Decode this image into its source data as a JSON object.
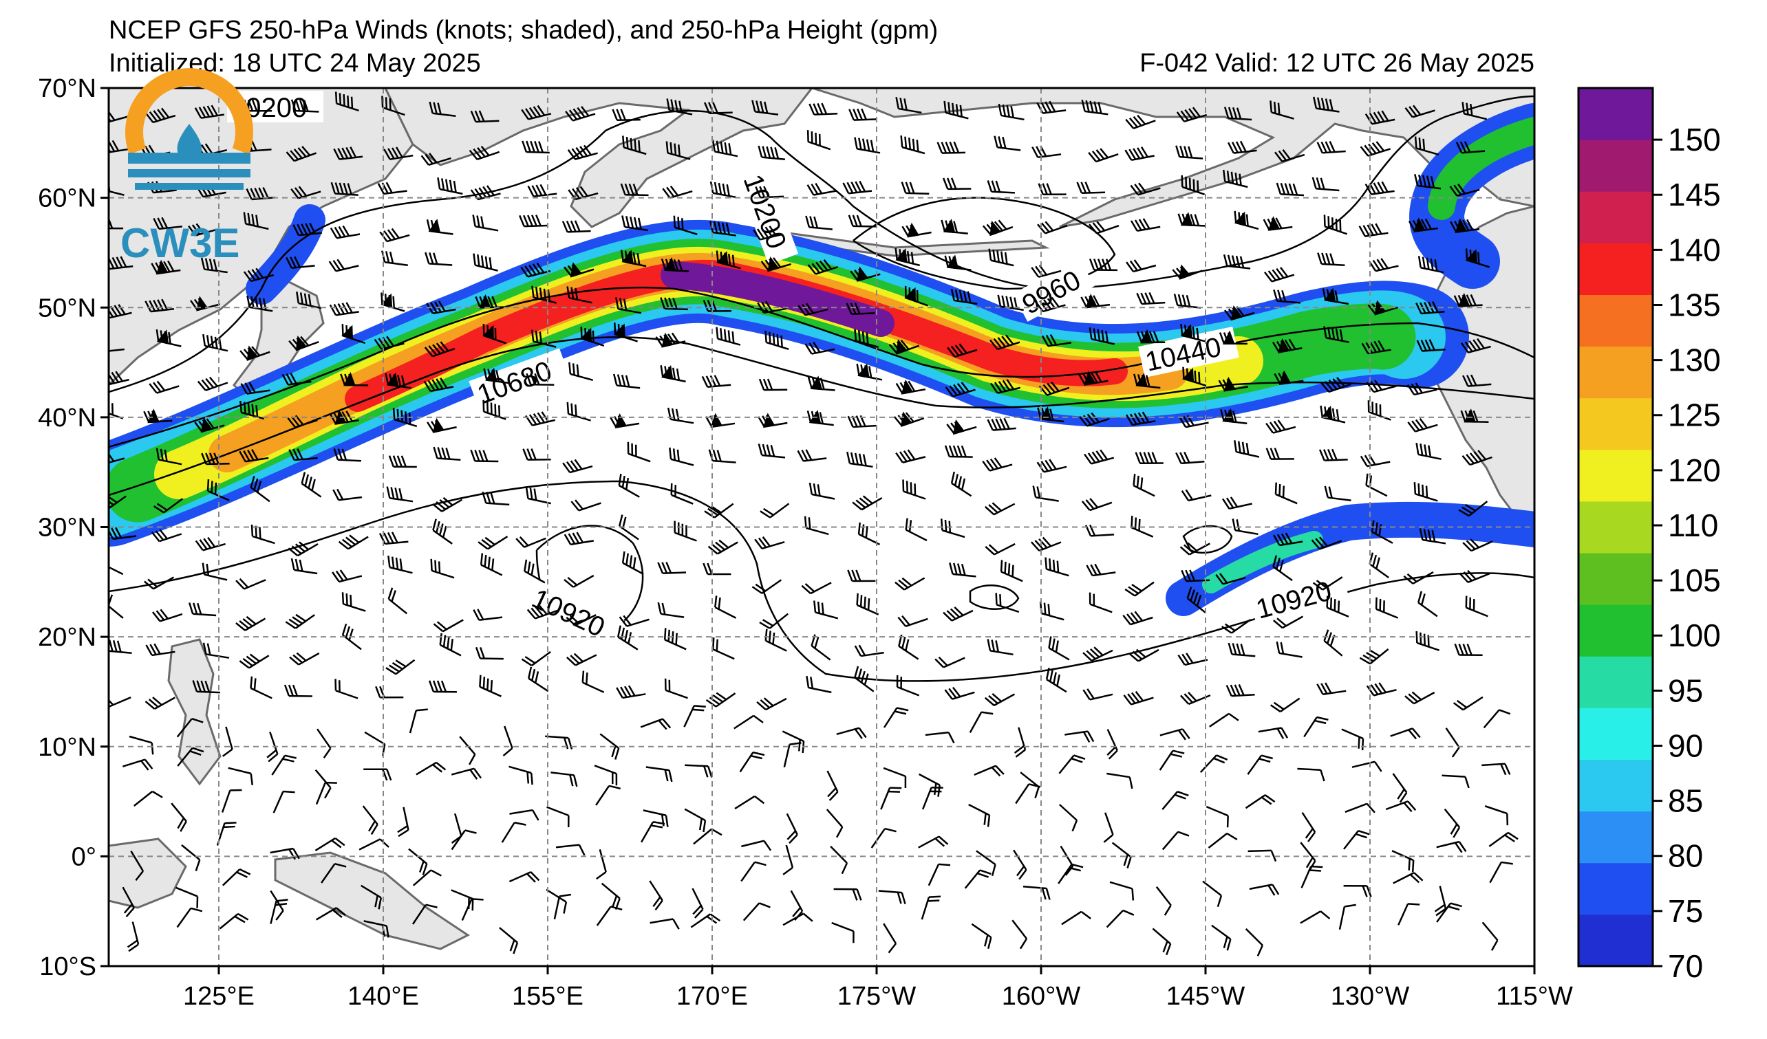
{
  "header": {
    "title": "NCEP GFS 250-hPa Winds (knots; shaded), and 250-hPa Height (gpm)",
    "initialized": "Initialized: 18 UTC 24 May 2025",
    "valid": "F-042  Valid: 12 UTC 26 May 2025"
  },
  "logo": {
    "text": "CW3E",
    "icon": "cw3e-logo-icon"
  },
  "map": {
    "lat_labels": [
      "70°N",
      "60°N",
      "50°N",
      "40°N",
      "30°N",
      "20°N",
      "10°N",
      "0°",
      "10°S"
    ],
    "lon_labels": [
      "125°E",
      "140°E",
      "155°E",
      "170°E",
      "175°W",
      "160°W",
      "145°W",
      "130°W",
      "115°W"
    ],
    "contour_labels": [
      "10200",
      "10200",
      "9960",
      "10680",
      "10440",
      "10920",
      "10920"
    ]
  },
  "colorbar": {
    "labels": [
      "70",
      "75",
      "80",
      "85",
      "90",
      "95",
      "100",
      "105",
      "110",
      "120",
      "125",
      "130",
      "135",
      "140",
      "145",
      "150"
    ],
    "colors": [
      "#1f2fd1",
      "#1f4ff0",
      "#2b8ff5",
      "#2bc8f0",
      "#28f0e8",
      "#26dca4",
      "#20c030",
      "#5dc020",
      "#a8d820",
      "#f0f020",
      "#f5c820",
      "#f5a020",
      "#f57020",
      "#f52020",
      "#d02050",
      "#a01a70",
      "#70189a"
    ]
  }
}
